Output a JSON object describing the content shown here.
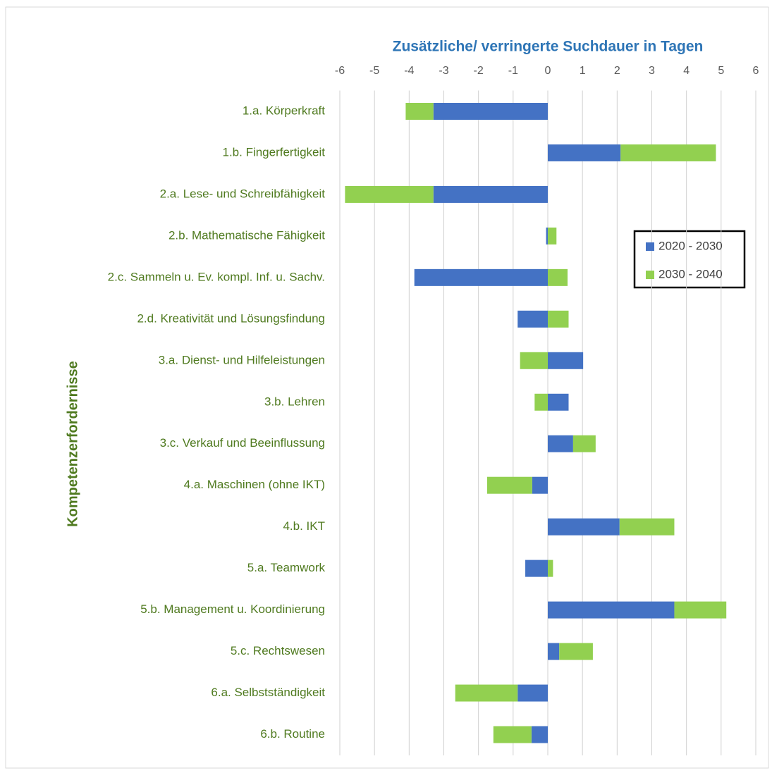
{
  "chart_data": {
    "type": "bar",
    "orientation": "horizontal",
    "stacked": true,
    "title": "Zusätzliche/ verringerte Suchdauer in Tagen",
    "y_axis_label": "Kompetenzerfordernisse",
    "categories": [
      "1.a. Körperkraft",
      "1.b. Fingerfertigkeit",
      "2.a. Lese- und Schreibfähigkeit",
      "2.b. Mathematische Fähigkeit",
      "2.c. Sammeln u. Ev. kompl. Inf. u. Sachv.",
      "2.d. Kreativität und Lösungsfindung",
      "3.a. Dienst- und Hilfeleistungen",
      "3.b. Lehren",
      "3.c. Verkauf und Beeinflussung",
      "4.a. Maschinen (ohne IKT)",
      "4.b. IKT",
      "5.a. Teamwork",
      "5.b. Management u. Koordinierung",
      "5.c. Rechtswesen",
      "6.a. Selbstständigkeit",
      "6.b. Routine"
    ],
    "series": [
      {
        "name": "2020 - 2030",
        "color": "#4472c4",
        "values": [
          -3.3,
          2.1,
          -3.3,
          -0.05,
          -3.85,
          -0.87,
          1.02,
          0.6,
          0.73,
          -0.45,
          2.07,
          -0.65,
          3.65,
          0.33,
          -0.87,
          -0.47
        ]
      },
      {
        "name": "2030 - 2040",
        "color": "#92d050",
        "values": [
          -0.8,
          2.75,
          -2.55,
          0.25,
          0.57,
          0.6,
          -0.8,
          -0.38,
          0.65,
          -1.3,
          1.58,
          0.15,
          1.5,
          0.97,
          -1.8,
          -1.1
        ]
      }
    ],
    "xlim": [
      -6,
      6
    ],
    "xticks": [
      -6,
      -5,
      -4,
      -3,
      -2,
      -1,
      0,
      1,
      2,
      3,
      4,
      5,
      6
    ],
    "grid": true,
    "legend": "right"
  }
}
